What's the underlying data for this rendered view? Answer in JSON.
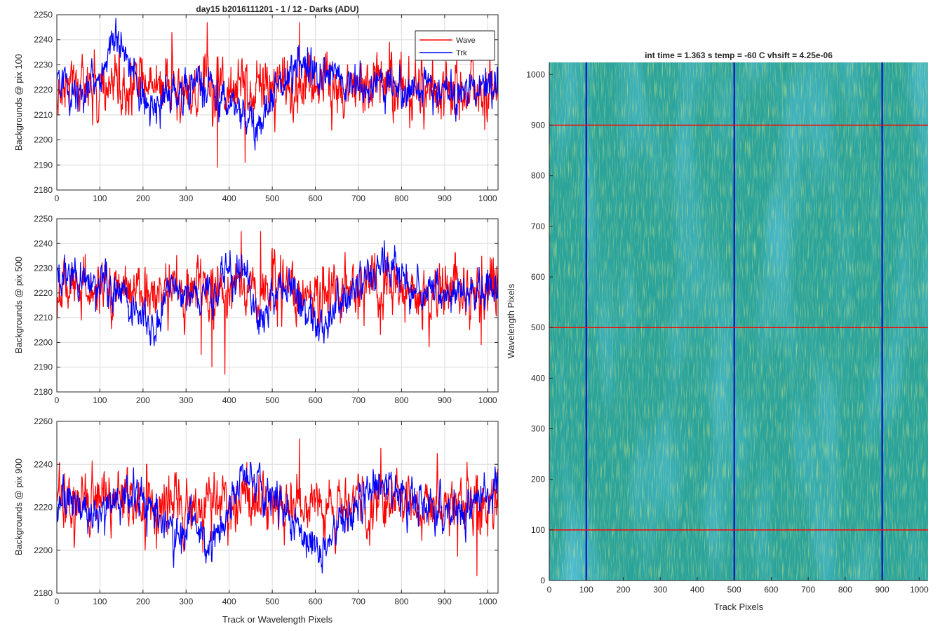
{
  "chart_data": [
    {
      "type": "line",
      "title": "day15 b2016111201 - 1 / 12 - Darks (ADU)",
      "ylabel": "Backgrounds @ pix 100",
      "xlabel": "",
      "xlim": [
        0,
        1024
      ],
      "ylim": [
        2180,
        2250
      ],
      "xticks": [
        0,
        100,
        200,
        300,
        400,
        500,
        600,
        700,
        800,
        900,
        1000
      ],
      "yticks": [
        2180,
        2190,
        2200,
        2210,
        2220,
        2230,
        2240,
        2250
      ],
      "grid": true,
      "legend": "top-right",
      "series": [
        {
          "name": "Wave",
          "color": "#ff0000",
          "mean": 2221,
          "noise_sd": 6,
          "spikes": [
            [
              267,
              2243
            ],
            [
              373,
              2189
            ],
            [
              437,
              2191
            ],
            [
              349,
              2247
            ],
            [
              563,
              2247
            ],
            [
              993,
              2204
            ]
          ]
        },
        {
          "name": "Trk",
          "color": "#0000ff",
          "mean": 2220,
          "noise_sd": 4,
          "drift": [
            [
              0,
              2222
            ],
            [
              60,
              2219
            ],
            [
              110,
              2228
            ],
            [
              140,
              2241
            ],
            [
              170,
              2232
            ],
            [
              220,
              2208
            ],
            [
              260,
              2217
            ],
            [
              330,
              2222
            ],
            [
              400,
              2216
            ],
            [
              470,
              2205
            ],
            [
              520,
              2226
            ],
            [
              600,
              2226
            ],
            [
              700,
              2222
            ],
            [
              800,
              2221
            ],
            [
              900,
              2219
            ],
            [
              1024,
              2224
            ]
          ]
        }
      ]
    },
    {
      "type": "line",
      "title": "",
      "ylabel": "Backgrounds @ pix 500",
      "xlabel": "",
      "xlim": [
        0,
        1024
      ],
      "ylim": [
        2180,
        2250
      ],
      "xticks": [
        0,
        100,
        200,
        300,
        400,
        500,
        600,
        700,
        800,
        900,
        1000
      ],
      "yticks": [
        2180,
        2190,
        2200,
        2210,
        2220,
        2230,
        2240,
        2250
      ],
      "grid": true,
      "series": [
        {
          "name": "Wave",
          "color": "#ff0000",
          "mean": 2221,
          "noise_sd": 6,
          "spikes": [
            [
              390,
              2187
            ],
            [
              360,
              2190
            ],
            [
              335,
              2195
            ],
            [
              428,
              2245
            ],
            [
              473,
              2245
            ],
            [
              985,
              2199
            ]
          ]
        },
        {
          "name": "Trk",
          "color": "#0000ff",
          "mean": 2221,
          "noise_sd": 4,
          "drift": [
            [
              0,
              2226
            ],
            [
              60,
              2223
            ],
            [
              150,
              2220
            ],
            [
              230,
              2203
            ],
            [
              260,
              2224
            ],
            [
              330,
              2216
            ],
            [
              430,
              2232
            ],
            [
              470,
              2207
            ],
            [
              520,
              2222
            ],
            [
              620,
              2206
            ],
            [
              680,
              2220
            ],
            [
              770,
              2232
            ],
            [
              850,
              2220
            ],
            [
              1024,
              2221
            ]
          ]
        }
      ]
    },
    {
      "type": "line",
      "title": "",
      "ylabel": "Backgrounds @ pix 900",
      "xlabel": "Track or Wavelength Pixels",
      "xlim": [
        0,
        1024
      ],
      "ylim": [
        2180,
        2260
      ],
      "xticks": [
        0,
        100,
        200,
        300,
        400,
        500,
        600,
        700,
        800,
        900,
        1000
      ],
      "yticks": [
        2180,
        2200,
        2220,
        2240,
        2260
      ],
      "grid": true,
      "series": [
        {
          "name": "Wave",
          "color": "#ff0000",
          "mean": 2221,
          "noise_sd": 7,
          "spikes": [
            [
              563,
              2252
            ],
            [
              975,
              2188
            ],
            [
              205,
              2200
            ],
            [
              930,
              2197
            ]
          ]
        },
        {
          "name": "Trk",
          "color": "#0000ff",
          "mean": 2221,
          "noise_sd": 5,
          "drift": [
            [
              0,
              2222
            ],
            [
              80,
              2218
            ],
            [
              180,
              2226
            ],
            [
              250,
              2210
            ],
            [
              300,
              2210
            ],
            [
              380,
              2205
            ],
            [
              430,
              2236
            ],
            [
              500,
              2225
            ],
            [
              600,
              2199
            ],
            [
              700,
              2222
            ],
            [
              760,
              2233
            ],
            [
              850,
              2220
            ],
            [
              950,
              2218
            ],
            [
              1024,
              2232
            ]
          ]
        }
      ]
    },
    {
      "type": "heatmap",
      "title": "int time = 1.363 s   temp = -60 C   vhsift = 4.25e-06",
      "xlabel": "Track Pixels",
      "ylabel": "Wavelength Pixels",
      "xlim": [
        0,
        1024
      ],
      "ylim": [
        0,
        1024
      ],
      "xticks": [
        0,
        100,
        200,
        300,
        400,
        500,
        600,
        700,
        800,
        900,
        1000
      ],
      "yticks": [
        0,
        100,
        200,
        300,
        400,
        500,
        600,
        700,
        800,
        900,
        1000
      ],
      "colormap": "parula",
      "base_color": "#2aa39b",
      "low_color": "#1e8cc6",
      "high_color": "#a9c94a",
      "vertical_lines": {
        "color": "#0000cc",
        "x": [
          100,
          500,
          900
        ]
      },
      "horizontal_lines": {
        "color": "#ff0000",
        "y": [
          100,
          500,
          900
        ]
      }
    }
  ]
}
